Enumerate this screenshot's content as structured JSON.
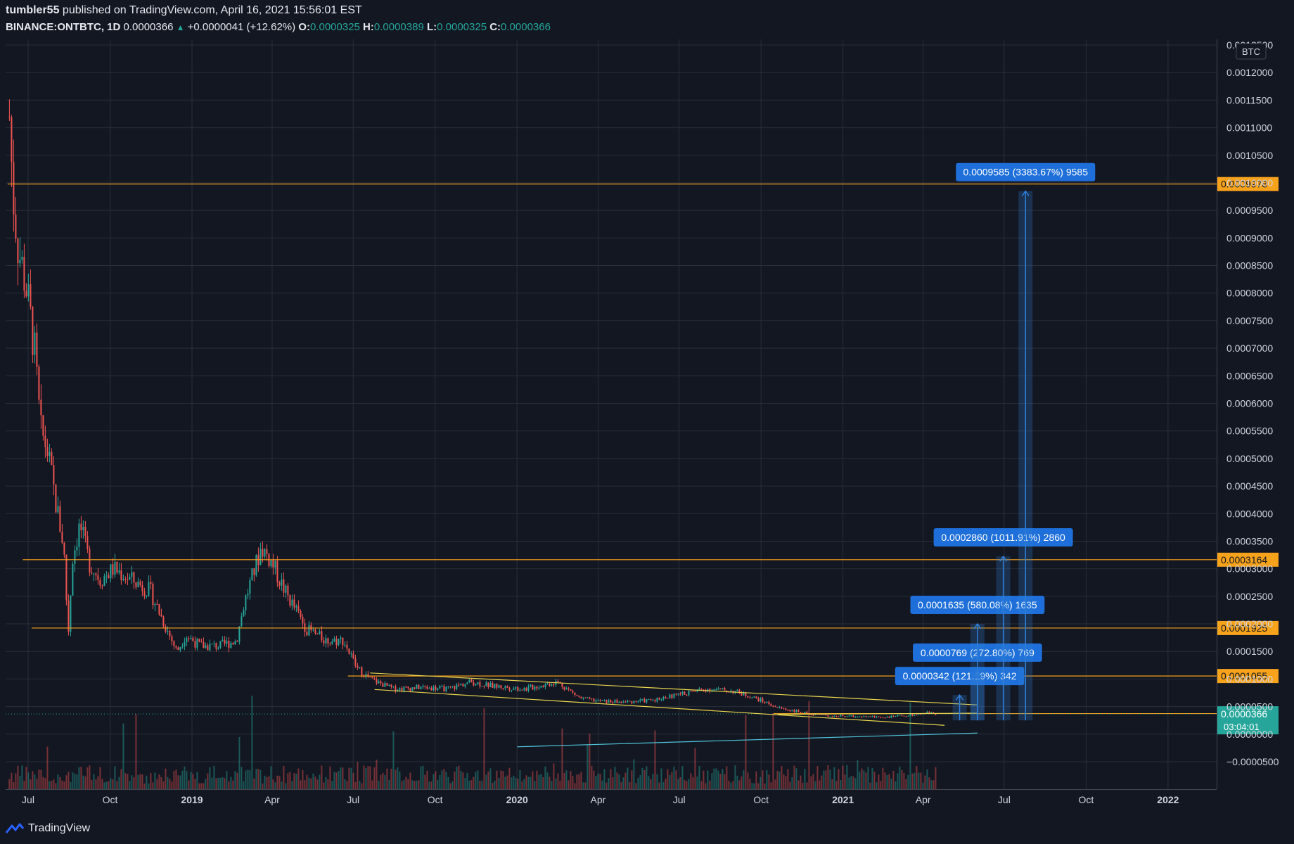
{
  "header": {
    "author": "tumbler55",
    "published_text": "published on TradingView.com, April 16, 2021 15:56:01 EST",
    "symbol": "BINANCE:ONTBTC, 1D",
    "last": "0.0000366",
    "change": "+0.0000041 (+12.62%)",
    "o_label": "O:",
    "o_value": "0.0000325",
    "h_label": "H:",
    "h_value": "0.0000389",
    "l_label": "L:",
    "l_value": "0.0000325",
    "c_label": "C:",
    "c_value": "0.0000366"
  },
  "footer": {
    "brand": "TradingView"
  },
  "colors": {
    "background": "#131722",
    "grid": "#2a2e39",
    "up": "#26a69a",
    "down": "#ef5350",
    "orange": "#f7a21b",
    "yellow": "#e8d44d",
    "cyan": "#4fc3d9",
    "blue": "#2f7ed8"
  },
  "chart_data": {
    "type": "candlestick",
    "currency_label": "BTC",
    "y_ticks": [
      "0.0012500",
      "0.0012000",
      "0.0011500",
      "0.0011000",
      "0.0010500",
      "0.0010000",
      "0.0009500",
      "0.0009000",
      "0.0008500",
      "0.0008000",
      "0.0007500",
      "0.0007000",
      "0.0006500",
      "0.0006000",
      "0.0005500",
      "0.0005000",
      "0.0004500",
      "0.0004000",
      "0.0003500",
      "0.0003000",
      "0.0002500",
      "0.0002000",
      "0.0001500",
      "0.0001000",
      "0.0000500",
      "0.0000000",
      "−0.0000500"
    ],
    "x_ticks": [
      {
        "label": "Jul",
        "date": "2018-07-01",
        "bold": false
      },
      {
        "label": "Oct",
        "date": "2018-10-01",
        "bold": false
      },
      {
        "label": "2019",
        "date": "2019-01-01",
        "bold": true
      },
      {
        "label": "Apr",
        "date": "2019-04-01",
        "bold": false
      },
      {
        "label": "Jul",
        "date": "2019-07-01",
        "bold": false
      },
      {
        "label": "Oct",
        "date": "2019-10-01",
        "bold": false
      },
      {
        "label": "2020",
        "date": "2020-01-01",
        "bold": true
      },
      {
        "label": "Apr",
        "date": "2020-04-01",
        "bold": false
      },
      {
        "label": "Jul",
        "date": "2020-07-01",
        "bold": false
      },
      {
        "label": "Oct",
        "date": "2020-10-01",
        "bold": false
      },
      {
        "label": "2021",
        "date": "2021-01-01",
        "bold": true
      },
      {
        "label": "Apr",
        "date": "2021-04-01",
        "bold": false
      },
      {
        "label": "Jul",
        "date": "2021-07-01",
        "bold": false
      },
      {
        "label": "Oct",
        "date": "2021-10-01",
        "bold": false
      },
      {
        "label": "2022",
        "date": "2022-01-01",
        "bold": true
      }
    ],
    "price_path": [
      [
        "2018-06-10",
        0.00112
      ],
      [
        "2018-06-14",
        0.00098
      ],
      [
        "2018-06-20",
        0.00088
      ],
      [
        "2018-06-28",
        0.00082
      ],
      [
        "2018-07-08",
        0.0007
      ],
      [
        "2018-07-15",
        0.00055
      ],
      [
        "2018-07-22",
        0.00052
      ],
      [
        "2018-08-01",
        0.00042
      ],
      [
        "2018-08-10",
        0.00034
      ],
      [
        "2018-08-15",
        0.00018
      ],
      [
        "2018-08-20",
        0.00032
      ],
      [
        "2018-08-28",
        0.00038
      ],
      [
        "2018-09-08",
        0.00031
      ],
      [
        "2018-09-20",
        0.00028
      ],
      [
        "2018-10-05",
        0.0003
      ],
      [
        "2018-10-25",
        0.00028
      ],
      [
        "2018-11-15",
        0.00026
      ],
      [
        "2018-12-01",
        0.0002
      ],
      [
        "2018-12-15",
        0.00015
      ],
      [
        "2018-12-25",
        0.00018
      ],
      [
        "2019-01-10",
        0.00016
      ],
      [
        "2019-02-01",
        0.00016
      ],
      [
        "2019-02-20",
        0.00017
      ],
      [
        "2019-03-01",
        0.00024
      ],
      [
        "2019-03-20",
        0.00034
      ],
      [
        "2019-04-01",
        0.00031
      ],
      [
        "2019-04-15",
        0.00026
      ],
      [
        "2019-05-10",
        0.00019
      ],
      [
        "2019-06-01",
        0.00017
      ],
      [
        "2019-06-20",
        0.00017
      ],
      [
        "2019-07-05",
        0.00012
      ],
      [
        "2019-07-20",
        0.0001
      ],
      [
        "2019-08-15",
        8.2e-05
      ],
      [
        "2019-09-15",
        8.5e-05
      ],
      [
        "2019-10-15",
        8.2e-05
      ],
      [
        "2019-11-10",
        9.5e-05
      ],
      [
        "2019-12-01",
        8.8e-05
      ],
      [
        "2020-01-10",
        8.2e-05
      ],
      [
        "2020-02-15",
        9.5e-05
      ],
      [
        "2020-03-12",
        6.5e-05
      ],
      [
        "2020-04-01",
        6e-05
      ],
      [
        "2020-05-01",
        5.8e-05
      ],
      [
        "2020-06-01",
        6.2e-05
      ],
      [
        "2020-07-01",
        7.2e-05
      ],
      [
        "2020-08-01",
        8.2e-05
      ],
      [
        "2020-09-01",
        7.8e-05
      ],
      [
        "2020-09-25",
        6.5e-05
      ],
      [
        "2020-10-20",
        4.8e-05
      ],
      [
        "2020-11-20",
        3.8e-05
      ],
      [
        "2020-12-20",
        3.3e-05
      ],
      [
        "2021-01-20",
        3.2e-05
      ],
      [
        "2021-02-20",
        3.1e-05
      ],
      [
        "2021-03-20",
        3.5e-05
      ],
      [
        "2021-04-10",
        4e-05
      ],
      [
        "2021-04-16",
        3.66e-05
      ]
    ],
    "horizontal_levels": [
      {
        "value": "0.0009978",
        "y": 0.0009978,
        "from": "2018-06-08"
      },
      {
        "value": "0.0003164",
        "y": 0.0003164,
        "from": "2018-06-25"
      },
      {
        "value": "0.0001925",
        "y": 0.0001925,
        "from": "2018-07-05"
      },
      {
        "value": "0.0001055",
        "y": 0.0001055,
        "from": "2019-06-25"
      },
      {
        "value": "0.0000373",
        "y": 3.73e-05,
        "from": "2020-10-15"
      }
    ],
    "current_price": {
      "value": "0.0000366",
      "countdown": "03:04:01",
      "y": 3.66e-05
    },
    "measure_arrows": [
      {
        "label": "0.0000342 (121.19%) 342",
        "date": "2021-05-12",
        "top": 7.1e-05
      },
      {
        "label": "0.0000769 (272.80%) 769",
        "date": "2021-06-01",
        "top": 0.0001135
      },
      {
        "label": "0.0001635 (580.08%) 1635",
        "date": "2021-06-01",
        "top": 0.0002
      },
      {
        "label": "0.0002860 (1011.91%) 2860",
        "date": "2021-06-30",
        "top": 0.0003225
      },
      {
        "label": "0.0009585 (3383.67%) 9585",
        "date": "2021-07-25",
        "top": 0.000985
      }
    ]
  }
}
